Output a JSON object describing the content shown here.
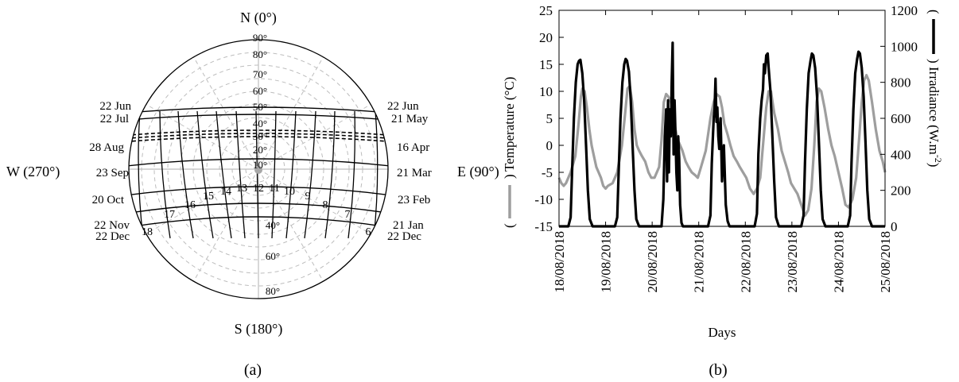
{
  "panel_a": {
    "caption": "(a)",
    "compass": {
      "north": "N (0°)",
      "south": "S (180°)",
      "west": "W (270°)",
      "east": "E (90°)"
    },
    "altitude_labels_north": [
      "90°",
      "80°",
      "70°",
      "60°",
      "50°",
      "40°",
      "30°",
      "20°",
      "10°"
    ],
    "altitude_labels_south": [
      "40°",
      "60°",
      "80°"
    ],
    "date_labels_left": [
      "22 Jun",
      "22 Jul",
      "28 Aug",
      "23 Sep",
      "20 Oct",
      "22 Nov",
      "22 Dec"
    ],
    "date_labels_right": [
      "22 Jun",
      "21 May",
      "16 Apr",
      "21 Mar",
      "23 Feb",
      "21 Jan",
      "22 Dec"
    ],
    "hour_labels": [
      "18",
      "17",
      "16",
      "15",
      "14",
      "13",
      "12",
      "11",
      "10",
      "9",
      "8",
      "7",
      "6"
    ],
    "colors": {
      "grid": "#bdbdbd",
      "curves": "#000000"
    }
  },
  "panel_b": {
    "caption": "(b)",
    "xlabel": "Days",
    "ylabel_left": "Temperature (°C)",
    "ylabel_right": "Irradiance (W.m",
    "ylabel_right_sup": "-2",
    "paren_open": "(",
    "paren_close": ")"
  },
  "chart_data": [
    {
      "type": "line",
      "title": "",
      "x_tick_labels": [
        "18/08/2018",
        "19/08/2018",
        "20/08/2018",
        "21/08/2018",
        "22/08/2018",
        "23/08/2018",
        "24/08/2018",
        "25/08/2018"
      ],
      "xlabel": "Days",
      "ylabel": "Temperature (°C)",
      "ylim": [
        -15,
        25
      ],
      "yticks": [
        -15,
        -10,
        -5,
        0,
        5,
        10,
        15,
        20,
        25
      ],
      "y2label": "Irradiance (W.m-2)",
      "y2lim": [
        0,
        1200
      ],
      "y2ticks": [
        0,
        200,
        400,
        600,
        800,
        1000,
        1200
      ],
      "grid": false,
      "series": [
        {
          "axis": "left",
          "color": "#9e9e9e",
          "x": [
            0,
            0.05,
            0.1,
            0.15,
            0.25,
            0.35,
            0.42,
            0.47,
            0.5,
            0.55,
            0.6,
            0.65,
            0.7,
            0.75,
            0.8,
            0.85,
            0.9,
            0.95,
            1.0,
            1.05,
            1.15,
            1.25,
            1.35,
            1.42,
            1.47,
            1.52,
            1.57,
            1.62,
            1.67,
            1.72,
            1.78,
            1.85,
            1.92,
            1.98,
            2.05,
            2.15,
            2.2,
            2.25,
            2.3,
            2.35,
            2.4,
            2.45,
            2.5,
            2.55,
            2.6,
            2.65,
            2.72,
            2.78,
            2.85,
            2.92,
            2.98,
            3.05,
            3.15,
            3.25,
            3.32,
            3.38,
            3.45,
            3.5,
            3.55,
            3.62,
            3.68,
            3.75,
            3.82,
            3.88,
            3.95,
            4.02,
            4.1,
            4.18,
            4.25,
            4.32,
            4.38,
            4.45,
            4.5,
            4.55,
            4.62,
            4.7,
            4.78,
            4.85,
            4.92,
            4.98,
            5.05,
            5.12,
            5.2,
            5.28,
            5.35,
            5.42,
            5.48,
            5.53,
            5.58,
            5.63,
            5.7,
            5.78,
            5.85,
            5.92,
            6.0,
            6.08,
            6.15,
            6.22,
            6.3,
            6.38,
            6.45,
            6.5,
            6.55,
            6.6,
            6.65,
            6.72,
            6.8,
            6.88,
            6.95,
            7.0
          ],
          "y": [
            -6,
            -7,
            -7.5,
            -7,
            -5,
            -2,
            4,
            9,
            10.5,
            10,
            7,
            3,
            0,
            -2,
            -4,
            -5,
            -6,
            -7.5,
            -8,
            -7.5,
            -7,
            -5,
            0,
            6,
            10.5,
            11,
            8,
            3,
            0,
            -1,
            -2,
            -3,
            -5,
            -6,
            -6,
            -4,
            1,
            8,
            9.5,
            9,
            8,
            6,
            3,
            1,
            0,
            -1,
            -3,
            -4,
            -5,
            -5.5,
            -6,
            -4,
            -1,
            5,
            8,
            9.5,
            9,
            7,
            4,
            2,
            0,
            -2,
            -3,
            -4,
            -5,
            -6,
            -8,
            -9,
            -8,
            -6,
            0,
            7,
            10,
            10,
            6,
            3,
            -1,
            -3,
            -5,
            -7,
            -8,
            -9,
            -11,
            -13,
            -12,
            -8,
            0,
            8,
            10.5,
            10,
            7,
            3,
            0,
            -2,
            -5,
            -8,
            -11,
            -11.5,
            -10,
            -6,
            2,
            8,
            12,
            13,
            12,
            8,
            3,
            -1,
            -3,
            -5
          ]
        },
        {
          "axis": "right",
          "color": "#000000",
          "x": [
            0,
            0.2,
            0.25,
            0.28,
            0.32,
            0.36,
            0.4,
            0.43,
            0.46,
            0.5,
            0.54,
            0.58,
            0.62,
            0.66,
            0.72,
            0.8,
            1.0,
            1.2,
            1.25,
            1.28,
            1.32,
            1.36,
            1.4,
            1.43,
            1.46,
            1.5,
            1.54,
            1.58,
            1.62,
            1.66,
            1.72,
            1.8,
            2.0,
            2.2,
            2.24,
            2.27,
            2.3,
            2.32,
            2.34,
            2.36,
            2.38,
            2.4,
            2.42,
            2.44,
            2.46,
            2.48,
            2.5,
            2.52,
            2.54,
            2.56,
            2.58,
            2.6,
            2.63,
            2.66,
            2.72,
            2.8,
            3.0,
            3.2,
            3.25,
            3.28,
            3.32,
            3.34,
            3.36,
            3.38,
            3.4,
            3.42,
            3.44,
            3.47,
            3.5,
            3.54,
            3.58,
            3.62,
            3.66,
            3.72,
            3.8,
            4.0,
            4.2,
            4.25,
            4.28,
            4.32,
            4.35,
            4.38,
            4.4,
            4.42,
            4.45,
            4.48,
            4.5,
            4.54,
            4.58,
            4.62,
            4.66,
            4.72,
            4.8,
            5.0,
            5.2,
            5.25,
            5.28,
            5.32,
            5.36,
            5.4,
            5.43,
            5.46,
            5.5,
            5.54,
            5.58,
            5.62,
            5.66,
            5.72,
            5.8,
            6.0,
            6.2,
            6.25,
            6.28,
            6.32,
            6.36,
            6.4,
            6.43,
            6.46,
            6.5,
            6.54,
            6.58,
            6.62,
            6.66,
            6.72,
            6.8,
            7.0
          ],
          "y": [
            0,
            0,
            50,
            300,
            600,
            800,
            900,
            920,
            925,
            850,
            700,
            450,
            200,
            40,
            0,
            0,
            0,
            0,
            50,
            300,
            600,
            800,
            900,
            930,
            920,
            860,
            700,
            450,
            200,
            40,
            0,
            0,
            0,
            0,
            150,
            500,
            650,
            250,
            700,
            300,
            650,
            500,
            800,
            1020,
            400,
            700,
            520,
            300,
            200,
            500,
            380,
            120,
            20,
            0,
            0,
            0,
            0,
            0,
            60,
            350,
            600,
            650,
            820,
            580,
            660,
            500,
            430,
            600,
            250,
            450,
            120,
            30,
            0,
            0,
            0,
            0,
            0,
            70,
            400,
            600,
            700,
            760,
            900,
            850,
            950,
            960,
            880,
            750,
            500,
            250,
            50,
            0,
            0,
            0,
            0,
            60,
            350,
            650,
            850,
            920,
            960,
            950,
            880,
            720,
            470,
            200,
            40,
            0,
            0,
            0,
            0,
            60,
            350,
            650,
            850,
            930,
            970,
            960,
            880,
            720,
            470,
            200,
            40,
            0,
            0,
            0
          ]
        }
      ]
    }
  ]
}
